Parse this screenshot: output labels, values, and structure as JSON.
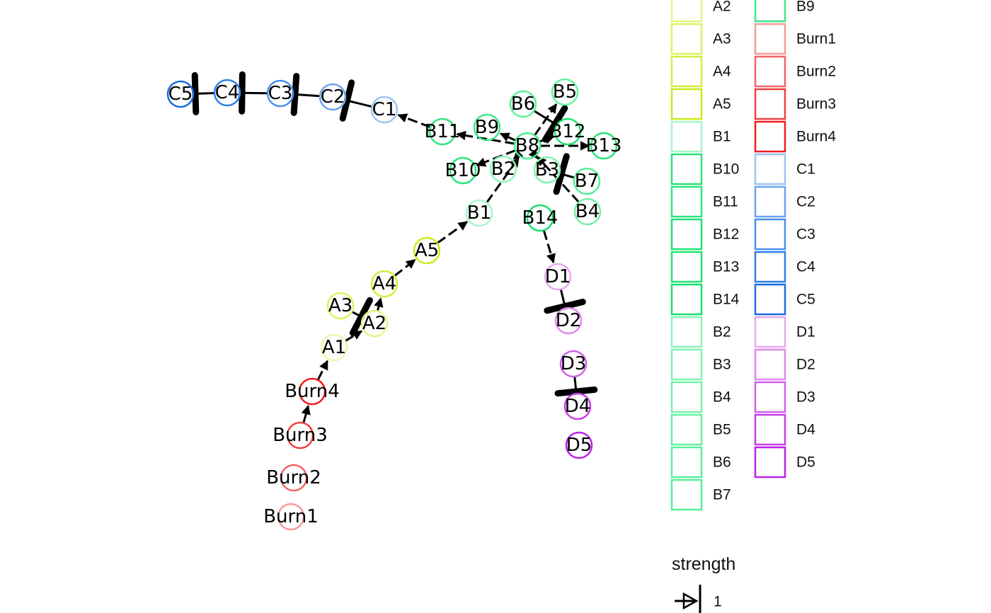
{
  "nodes": [
    {
      "id": "C5",
      "label": "C5",
      "color": "#1a6ee0"
    },
    {
      "id": "C4",
      "label": "C4",
      "color": "#2f7ee8"
    },
    {
      "id": "C3",
      "label": "C3",
      "color": "#4a8fee"
    },
    {
      "id": "C2",
      "label": "C2",
      "color": "#6aa3f0"
    },
    {
      "id": "C1",
      "label": "C1",
      "color": "#9cc2f5"
    },
    {
      "id": "B11",
      "label": "B11",
      "color": "#2ee67f"
    },
    {
      "id": "B9",
      "label": "B9",
      "color": "#3aea86"
    },
    {
      "id": "B6",
      "label": "B6",
      "color": "#5cf09c"
    },
    {
      "id": "B5",
      "label": "B5",
      "color": "#66f0a2"
    },
    {
      "id": "B12",
      "label": "B12",
      "color": "#1ee272"
    },
    {
      "id": "B13",
      "label": "B13",
      "color": "#22e476"
    },
    {
      "id": "B8",
      "label": "B8",
      "color": "#44ec8e"
    },
    {
      "id": "B10",
      "label": "B10",
      "color": "#28e57a"
    },
    {
      "id": "B2",
      "label": "B2",
      "color": "#8cf4b8"
    },
    {
      "id": "B3",
      "label": "B3",
      "color": "#80f3b0"
    },
    {
      "id": "B7",
      "label": "B7",
      "color": "#55ef98"
    },
    {
      "id": "B4",
      "label": "B4",
      "color": "#72f1a8"
    },
    {
      "id": "B14",
      "label": "B14",
      "color": "#16e06c"
    },
    {
      "id": "B1",
      "label": "B1",
      "color": "#a8f5c8"
    },
    {
      "id": "A5",
      "label": "A5",
      "color": "#d0e81a"
    },
    {
      "id": "A4",
      "label": "A4",
      "color": "#d8ec3c"
    },
    {
      "id": "A3",
      "label": "A3",
      "color": "#e0f060"
    },
    {
      "id": "A2",
      "label": "A2",
      "color": "#e6f386"
    },
    {
      "id": "A1",
      "label": "A1",
      "color": "#eef6aa"
    },
    {
      "id": "Burn4",
      "label": "Burn4",
      "color": "#ee1c1c"
    },
    {
      "id": "Burn3",
      "label": "Burn3",
      "color": "#f04040"
    },
    {
      "id": "Burn2",
      "label": "Burn2",
      "color": "#f26464"
    },
    {
      "id": "Burn1",
      "label": "Burn1",
      "color": "#f59a9a"
    },
    {
      "id": "D1",
      "label": "D1",
      "color": "#e8a8ee"
    },
    {
      "id": "D2",
      "label": "D2",
      "color": "#e088ee"
    },
    {
      "id": "D3",
      "label": "D3",
      "color": "#d060ec"
    },
    {
      "id": "D4",
      "label": "D4",
      "color": "#c83cea"
    },
    {
      "id": "D5",
      "label": "D5",
      "color": "#c020e8"
    }
  ],
  "edges": [
    {
      "from": "C4",
      "to": "C5",
      "type": "bar",
      "strength": 1
    },
    {
      "from": "C3",
      "to": "C4",
      "type": "bar",
      "strength": 1
    },
    {
      "from": "C2",
      "to": "C3",
      "type": "bar",
      "strength": 1
    },
    {
      "from": "C1",
      "to": "C2",
      "type": "bar",
      "strength": 1
    },
    {
      "from": "B11",
      "to": "C1",
      "type": "arrow",
      "strength": 1
    },
    {
      "from": "Burn3",
      "to": "Burn4",
      "type": "arrow",
      "strength": 1
    },
    {
      "from": "Burn4",
      "to": "A1",
      "type": "arrow",
      "strength": 1
    },
    {
      "from": "A1",
      "to": "A2",
      "type": "arrow",
      "strength": 1
    },
    {
      "from": "A3",
      "to": "A2",
      "type": "bar",
      "strength": 1
    },
    {
      "from": "A2",
      "to": "A4",
      "type": "arrow",
      "strength": 1
    },
    {
      "from": "A4",
      "to": "A5",
      "type": "arrow",
      "strength": 1
    },
    {
      "from": "A5",
      "to": "B1",
      "type": "arrow",
      "strength": 1
    },
    {
      "from": "B1",
      "to": "B8",
      "type": "arrow",
      "strength": 1
    },
    {
      "from": "B14",
      "to": "D1",
      "type": "arrow",
      "strength": 1
    },
    {
      "from": "D1",
      "to": "D2",
      "type": "bar",
      "strength": 1
    },
    {
      "from": "D3",
      "to": "D4",
      "type": "bar",
      "strength": 1
    },
    {
      "from": "B8",
      "to": "B11",
      "type": "arrow",
      "strength": 1
    },
    {
      "from": "B8",
      "to": "B10",
      "type": "arrow",
      "strength": 1
    },
    {
      "from": "B8",
      "to": "B9",
      "type": "arrow",
      "strength": 1
    },
    {
      "from": "B8",
      "to": "B2",
      "type": "arrow",
      "strength": 1
    },
    {
      "from": "B8",
      "to": "B5",
      "type": "arrow",
      "strength": 1
    },
    {
      "from": "B8",
      "to": "B12",
      "type": "arrow",
      "strength": 1
    },
    {
      "from": "B8",
      "to": "B3",
      "type": "arrow",
      "strength": 1
    },
    {
      "from": "B8",
      "to": "B13",
      "type": "arrow",
      "strength": 1
    },
    {
      "from": "B6",
      "to": "B12",
      "type": "bar",
      "strength": 1
    },
    {
      "from": "B4",
      "to": "B8",
      "type": "arrow",
      "strength": 1
    },
    {
      "from": "B7",
      "to": "B3",
      "type": "bar",
      "strength": 1
    }
  ],
  "legend": {
    "color_items": [
      "A2",
      "A3",
      "A4",
      "A5",
      "B1",
      "B10",
      "B11",
      "B12",
      "B13",
      "B14",
      "B2",
      "B3",
      "B4",
      "B5",
      "B6",
      "B7",
      "B9",
      "Burn1",
      "Burn2",
      "Burn3",
      "Burn4",
      "C1",
      "C2",
      "C3",
      "C4",
      "C5",
      "D1",
      "D2",
      "D3",
      "D4",
      "D5"
    ],
    "strength_title": "strength",
    "strength_value": "1"
  }
}
